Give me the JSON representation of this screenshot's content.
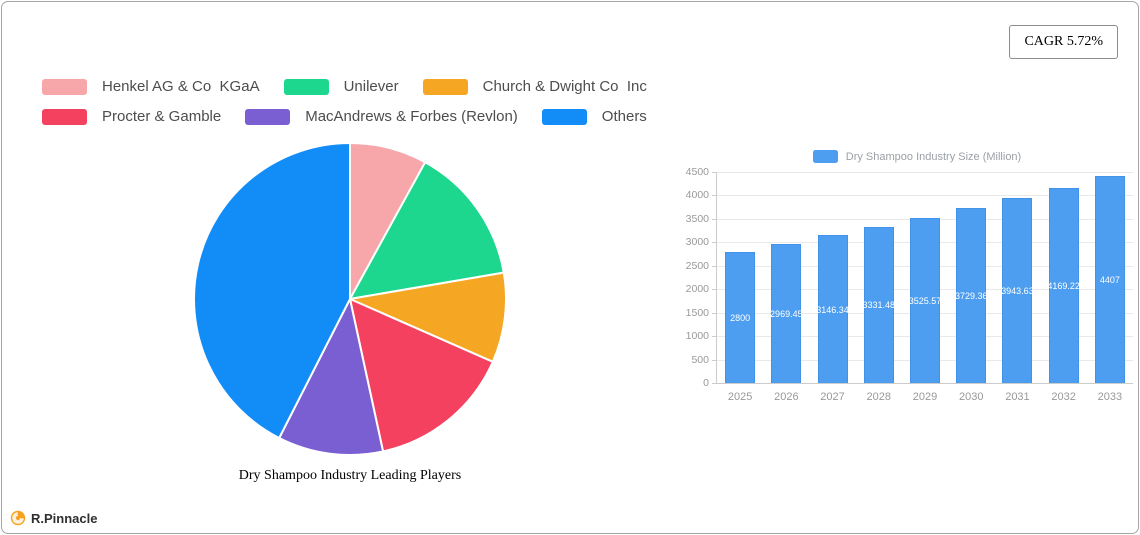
{
  "badge": {
    "label": "CAGR 5.72%"
  },
  "legend": {
    "items": [
      {
        "label": "Henkel AG & Co  KGaA",
        "color": "#f7a6a9"
      },
      {
        "label": "Unilever",
        "color": "#1ed78f"
      },
      {
        "label": "Church & Dwight Co  Inc",
        "color": "#f5a623"
      },
      {
        "label": "Procter & Gamble",
        "color": "#f4415f"
      },
      {
        "label": "MacAndrews & Forbes (Revlon)",
        "color": "#7a5fd2"
      },
      {
        "label": "Others",
        "color": "#128df7"
      }
    ]
  },
  "pie": {
    "title": "Dry Shampoo Industry Leading Players"
  },
  "logo": {
    "text": "R.Pinnacle"
  },
  "chart_data": [
    {
      "type": "pie",
      "title": "Dry Shampoo Industry Leading Players",
      "labels": [
        "Henkel AG & Co  KGaA",
        "Unilever",
        "Church & Dwight Co  Inc",
        "Procter & Gamble",
        "MacAndrews & Forbes (Revlon)",
        "Others"
      ],
      "values": [
        8,
        14.3,
        9.3,
        15,
        10.9,
        42.5
      ],
      "values_unit": "% share (estimated from slice angles)",
      "colors": [
        "#f7a6a9",
        "#1ed78f",
        "#f5a623",
        "#f4415f",
        "#7a5fd2",
        "#128df7"
      ],
      "start_angle": "top",
      "direction": "clockwise",
      "legend_position": "top-left"
    },
    {
      "type": "bar",
      "legend": "Dry Shampoo Industry Size (Million)",
      "categories": [
        "2025",
        "2026",
        "2027",
        "2028",
        "2029",
        "2030",
        "2031",
        "2032",
        "2033"
      ],
      "values": [
        2800,
        2969.45,
        3146.34,
        3331.48,
        3525.57,
        3729.36,
        3943.63,
        4169.22,
        4407
      ],
      "bar_labels": [
        "2800",
        "2969.45",
        "3146.34",
        "3331.48",
        "3525.57",
        "3729.36",
        "3943.63",
        "4169.22",
        "4407"
      ],
      "ylim": [
        0,
        4500
      ],
      "ytick_step": 500,
      "bar_color": "#4d9ef0",
      "bar_border_color": "#4093e8",
      "grid": true,
      "legend_position": "top"
    }
  ]
}
